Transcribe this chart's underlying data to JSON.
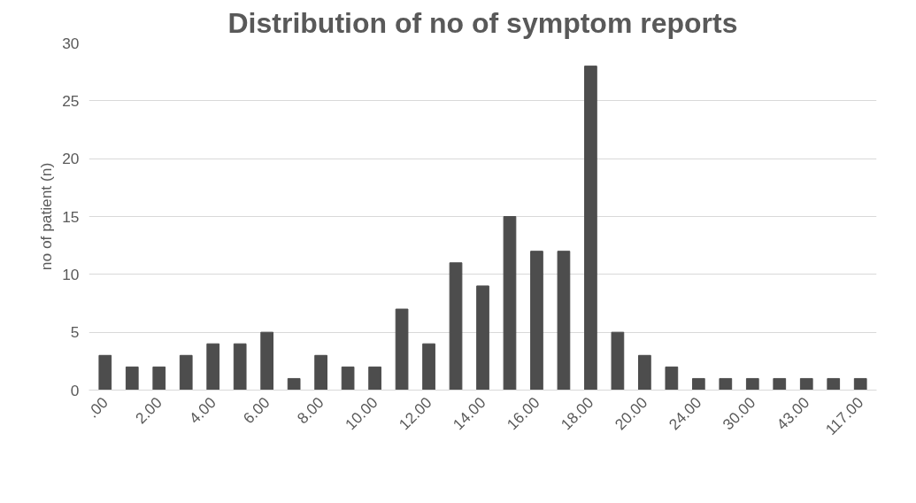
{
  "chart_data": {
    "type": "bar",
    "title": "Distribution of no of symptom reports",
    "ylabel": "no of patient (n)",
    "categories": [
      ".00",
      null,
      "2.00",
      null,
      "4.00",
      null,
      "6.00",
      null,
      "8.00",
      null,
      "10.00",
      null,
      "12.00",
      null,
      "14.00",
      null,
      "16.00",
      null,
      "18.00",
      null,
      "20.00",
      null,
      "24.00",
      null,
      "30.00",
      null,
      "43.00",
      null,
      "117.00"
    ],
    "values": [
      3,
      2,
      2,
      3,
      4,
      4,
      5,
      1,
      3,
      2,
      2,
      7,
      4,
      11,
      9,
      15,
      12,
      12,
      28,
      5,
      3,
      2,
      1,
      1,
      1,
      1,
      1,
      1,
      1
    ],
    "color": "#4d4d4d",
    "ylim": [
      0,
      30
    ],
    "yticks": [
      0,
      5,
      10,
      15,
      20,
      25,
      30
    ],
    "grid": "y"
  }
}
